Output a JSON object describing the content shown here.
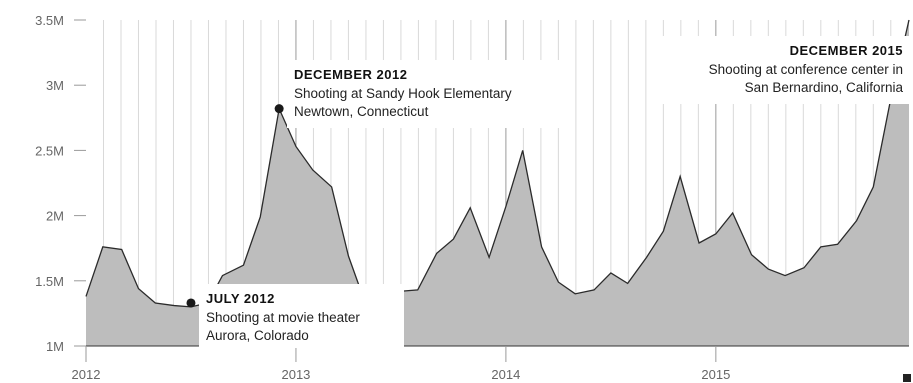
{
  "chart_data": {
    "type": "area",
    "title": "",
    "xlabel": "",
    "ylabel": "",
    "ylim": [
      1000000,
      3500000
    ],
    "yticks": [
      {
        "value": 1000000,
        "label": "1M"
      },
      {
        "value": 1500000,
        "label": "1.5M"
      },
      {
        "value": 2000000,
        "label": "2M"
      },
      {
        "value": 2500000,
        "label": "2.5M"
      },
      {
        "value": 3000000,
        "label": "3M"
      },
      {
        "value": 3500000,
        "label": "3.5M"
      }
    ],
    "xticks": [
      {
        "value": 2012,
        "label": "2012"
      },
      {
        "value": 2013,
        "label": "2013"
      },
      {
        "value": 2014,
        "label": "2014"
      },
      {
        "value": 2015,
        "label": "2015"
      }
    ],
    "xlim": [
      2012,
      2015.92
    ],
    "grid": true,
    "colors": {
      "fill": "#bdbdbd",
      "line": "#2b2b2b",
      "grid": "#d9d9d9",
      "major_grid": "#9a9a9a"
    },
    "series": [
      {
        "points": [
          [
            2012.0,
            1380000
          ],
          [
            2012.08,
            1760000
          ],
          [
            2012.17,
            1740000
          ],
          [
            2012.25,
            1440000
          ],
          [
            2012.33,
            1330000
          ],
          [
            2012.42,
            1310000
          ],
          [
            2012.5,
            1300000
          ],
          [
            2012.58,
            1330000
          ],
          [
            2012.65,
            1540000
          ],
          [
            2012.75,
            1620000
          ],
          [
            2012.83,
            1990000
          ],
          [
            2012.92,
            2820000
          ],
          [
            2013.0,
            2530000
          ],
          [
            2013.08,
            2350000
          ],
          [
            2013.17,
            2220000
          ],
          [
            2013.25,
            1690000
          ],
          [
            2013.33,
            1330000
          ],
          [
            2013.42,
            1340000
          ],
          [
            2013.5,
            1420000
          ],
          [
            2013.58,
            1430000
          ],
          [
            2013.67,
            1710000
          ],
          [
            2013.75,
            1820000
          ],
          [
            2013.83,
            2060000
          ],
          [
            2013.92,
            1680000
          ],
          [
            2014.0,
            2070000
          ],
          [
            2014.08,
            2500000
          ],
          [
            2014.17,
            1760000
          ],
          [
            2014.25,
            1490000
          ],
          [
            2014.33,
            1400000
          ],
          [
            2014.42,
            1430000
          ],
          [
            2014.5,
            1560000
          ],
          [
            2014.58,
            1480000
          ],
          [
            2014.67,
            1680000
          ],
          [
            2014.75,
            1880000
          ],
          [
            2014.83,
            2300000
          ],
          [
            2014.92,
            1790000
          ],
          [
            2015.0,
            1860000
          ],
          [
            2015.08,
            2020000
          ],
          [
            2015.17,
            1700000
          ],
          [
            2015.25,
            1590000
          ],
          [
            2015.33,
            1540000
          ],
          [
            2015.42,
            1600000
          ],
          [
            2015.5,
            1760000
          ],
          [
            2015.58,
            1780000
          ],
          [
            2015.67,
            1960000
          ],
          [
            2015.75,
            2220000
          ],
          [
            2015.83,
            2870000
          ],
          [
            2015.92,
            3500000
          ]
        ]
      }
    ],
    "annotations": [
      {
        "id": "july-2012",
        "x": 2012.5,
        "y": 1330000,
        "title": "JULY 2012",
        "lines": [
          "Shooting at movie theater",
          "Aurora, Colorado"
        ],
        "align": "left"
      },
      {
        "id": "december-2012",
        "x": 2012.92,
        "y": 2820000,
        "title": "DECEMBER 2012",
        "lines": [
          "Shooting at Sandy Hook Elementary",
          "Newtown, Connecticut"
        ],
        "align": "left"
      },
      {
        "id": "december-2015",
        "x": 2015.92,
        "y": 3500000,
        "title": "DECEMBER 2015",
        "lines": [
          "Shooting at conference center in",
          "San Bernardino, California"
        ],
        "align": "right"
      }
    ]
  }
}
